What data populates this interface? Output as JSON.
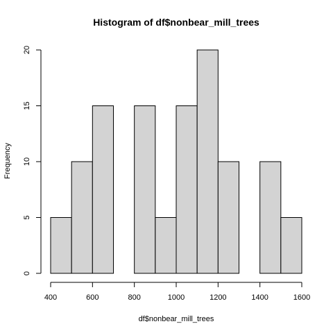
{
  "chart_data": {
    "type": "bar",
    "title": "Histogram of df$nonbear_mill_trees",
    "xlabel": "df$nonbear_mill_trees",
    "ylabel": "Frequency",
    "bins": [
      {
        "start": 400,
        "end": 500,
        "count": 5
      },
      {
        "start": 500,
        "end": 600,
        "count": 10
      },
      {
        "start": 600,
        "end": 700,
        "count": 15
      },
      {
        "start": 700,
        "end": 800,
        "count": 0
      },
      {
        "start": 800,
        "end": 900,
        "count": 15
      },
      {
        "start": 900,
        "end": 1000,
        "count": 5
      },
      {
        "start": 1000,
        "end": 1100,
        "count": 15
      },
      {
        "start": 1100,
        "end": 1200,
        "count": 20
      },
      {
        "start": 1200,
        "end": 1300,
        "count": 10
      },
      {
        "start": 1300,
        "end": 1400,
        "count": 0
      },
      {
        "start": 1400,
        "end": 1500,
        "count": 10
      },
      {
        "start": 1500,
        "end": 1600,
        "count": 5
      }
    ],
    "x_ticks": [
      400,
      600,
      800,
      1000,
      1200,
      1400,
      1600
    ],
    "y_ticks": [
      0,
      5,
      10,
      15,
      20
    ],
    "xlim": [
      400,
      1600
    ],
    "ylim": [
      0,
      20
    ],
    "grid": false,
    "colors": {
      "bar_fill": "#d3d3d3",
      "bar_stroke": "#000000"
    }
  }
}
